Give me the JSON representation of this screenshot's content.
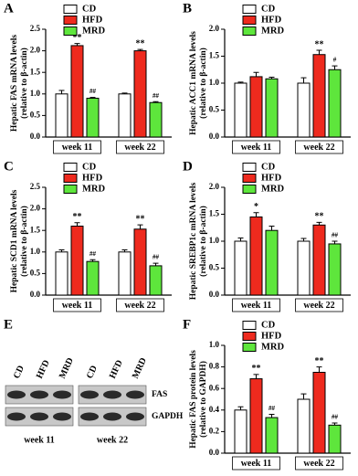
{
  "chart_data": [
    {
      "type": "bar",
      "letter": "A",
      "ylabel": [
        "Hepatic FAS mRNA levels",
        "(relative to β-actin)"
      ],
      "categories": [
        "week 11",
        "week 22"
      ],
      "series": [
        {
          "name": "CD",
          "color": "#ffffff",
          "values": [
            1.0,
            1.0
          ],
          "errors": [
            0.08,
            0.02
          ],
          "significance": [
            null,
            null
          ]
        },
        {
          "name": "HFD",
          "color": "#ee2a1e",
          "values": [
            2.12,
            2.0
          ],
          "errors": [
            0.05,
            0.03
          ],
          "significance": [
            "**",
            "**"
          ]
        },
        {
          "name": "MRD",
          "color": "#5ee63c",
          "values": [
            0.9,
            0.8
          ],
          "errors": [
            0.02,
            0.02
          ],
          "significance": [
            "##",
            "##"
          ]
        }
      ],
      "ylim": [
        0,
        2.5
      ],
      "yticks": [
        {
          "value": 0,
          "label": "0.0"
        },
        0.5,
        {
          "value": 1,
          "label": "1.0"
        },
        1.5,
        {
          "value": 2,
          "label": "2.0"
        },
        2.5
      ]
    },
    {
      "type": "bar",
      "letter": "B",
      "ylabel": [
        "Hepatic ACC1 mRNA levels",
        "(relative to β-actin)"
      ],
      "categories": [
        "week 11",
        "week 22"
      ],
      "series": [
        {
          "name": "CD",
          "color": "#ffffff",
          "values": [
            1.0,
            1.0
          ],
          "errors": [
            0.02,
            0.1
          ],
          "significance": [
            null,
            null
          ]
        },
        {
          "name": "HFD",
          "color": "#ee2a1e",
          "values": [
            1.12,
            1.53
          ],
          "errors": [
            0.08,
            0.08
          ],
          "significance": [
            null,
            "**"
          ]
        },
        {
          "name": "MRD",
          "color": "#5ee63c",
          "values": [
            1.08,
            1.25
          ],
          "errors": [
            0.03,
            0.07
          ],
          "significance": [
            null,
            "#"
          ]
        }
      ],
      "ylim": [
        0,
        2
      ],
      "yticks": [
        {
          "value": 0,
          "label": "0.0"
        },
        0.5,
        {
          "value": 1,
          "label": "1.0"
        },
        1.5,
        {
          "value": 2,
          "label": "2.0"
        }
      ]
    },
    {
      "type": "bar",
      "letter": "C",
      "ylabel": [
        "Hepatic SCD1 mRNA levels",
        "(relative to β-actin)"
      ],
      "categories": [
        "week 11",
        "week 22"
      ],
      "series": [
        {
          "name": "CD",
          "color": "#ffffff",
          "values": [
            1.0,
            1.0
          ],
          "errors": [
            0.05,
            0.05
          ],
          "significance": [
            null,
            null
          ]
        },
        {
          "name": "HFD",
          "color": "#ee2a1e",
          "values": [
            1.6,
            1.53
          ],
          "errors": [
            0.08,
            0.1
          ],
          "significance": [
            "**",
            "**"
          ]
        },
        {
          "name": "MRD",
          "color": "#5ee63c",
          "values": [
            0.78,
            0.68
          ],
          "errors": [
            0.04,
            0.06
          ],
          "significance": [
            "##",
            "##"
          ]
        }
      ],
      "ylim": [
        0,
        2.5
      ],
      "yticks": [
        {
          "value": 0,
          "label": "0.0"
        },
        0.5,
        {
          "value": 1,
          "label": "1.0"
        },
        1.5,
        {
          "value": 2,
          "label": "2.0"
        },
        2.5
      ]
    },
    {
      "type": "bar",
      "letter": "D",
      "ylabel": [
        "Hepatic SREBP1c mRNA levels",
        "(relative to β-actin)"
      ],
      "categories": [
        "week 11",
        "week 22"
      ],
      "series": [
        {
          "name": "CD",
          "color": "#ffffff",
          "values": [
            1.0,
            1.0
          ],
          "errors": [
            0.06,
            0.05
          ],
          "significance": [
            null,
            null
          ]
        },
        {
          "name": "HFD",
          "color": "#ee2a1e",
          "values": [
            1.45,
            1.3
          ],
          "errors": [
            0.08,
            0.05
          ],
          "significance": [
            "*",
            "**"
          ]
        },
        {
          "name": "MRD",
          "color": "#5ee63c",
          "values": [
            1.2,
            0.95
          ],
          "errors": [
            0.08,
            0.05
          ],
          "significance": [
            null,
            "##"
          ]
        }
      ],
      "ylim": [
        0,
        2
      ],
      "yticks": [
        {
          "value": 0,
          "label": "0.0"
        },
        0.5,
        {
          "value": 1,
          "label": "1.0"
        },
        1.5,
        {
          "value": 2,
          "label": "2.0"
        }
      ]
    },
    {
      "type": "bar",
      "letter": "F",
      "ylabel": [
        "Hepatic FAS protein levels",
        "(relative to GAPDH)"
      ],
      "categories": [
        "week 11",
        "week 22"
      ],
      "series": [
        {
          "name": "CD",
          "color": "#ffffff",
          "values": [
            0.4,
            0.5
          ],
          "errors": [
            0.03,
            0.05
          ],
          "significance": [
            null,
            null
          ]
        },
        {
          "name": "HFD",
          "color": "#ee2a1e",
          "values": [
            0.69,
            0.75
          ],
          "errors": [
            0.04,
            0.05
          ],
          "significance": [
            "**",
            "**"
          ]
        },
        {
          "name": "MRD",
          "color": "#5ee63c",
          "values": [
            0.33,
            0.26
          ],
          "errors": [
            0.03,
            0.02
          ],
          "significance": [
            "##",
            "##"
          ]
        }
      ],
      "ylim": [
        0,
        1
      ],
      "yticks": [
        {
          "value": 0,
          "label": "0.0"
        },
        0.2,
        0.4,
        0.6,
        0.8,
        {
          "value": 1,
          "label": "1.0"
        }
      ]
    }
  ],
  "blot": {
    "letter": "E",
    "groups": [
      {
        "lanes": [
          "CD",
          "HFD",
          "MRD"
        ],
        "label": "week 11"
      },
      {
        "lanes": [
          "CD",
          "HFD",
          "MRD"
        ],
        "label": "week 22"
      }
    ],
    "proteins": [
      "FAS",
      "GAPDH"
    ]
  }
}
